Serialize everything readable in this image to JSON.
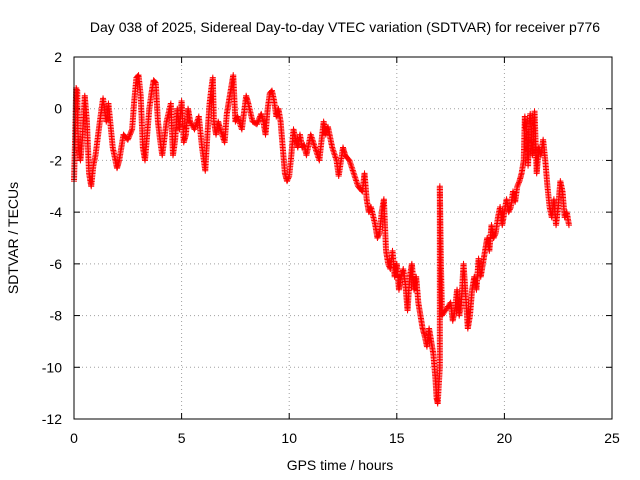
{
  "chart_data": {
    "type": "scatter",
    "title": "Day 038 of 2025, Sidereal Day-to-day VTEC variation (SDTVAR) for receiver p776",
    "xlabel": "GPS time / hours",
    "ylabel": "SDTVAR / TECUs",
    "xlim": [
      0,
      25
    ],
    "ylim": [
      -12,
      2
    ],
    "xticks": [
      0,
      5,
      10,
      15,
      20,
      25
    ],
    "yticks": [
      2,
      0,
      -2,
      -4,
      -6,
      -8,
      -10,
      -12
    ],
    "grid": true,
    "marker": "+",
    "color": "#ff0000",
    "series": [
      {
        "name": "SDTVAR",
        "trace": [
          [
            0.0,
            -2.8
          ],
          [
            0.05,
            -1.2
          ],
          [
            0.1,
            0.8
          ],
          [
            0.15,
            0.7
          ],
          [
            0.2,
            -1.5
          ],
          [
            0.3,
            -2.0
          ],
          [
            0.4,
            -1.0
          ],
          [
            0.5,
            0.5
          ],
          [
            0.6,
            -0.5
          ],
          [
            0.7,
            -2.5
          ],
          [
            0.8,
            -3.0
          ],
          [
            0.9,
            -2.2
          ],
          [
            1.0,
            -1.8
          ],
          [
            1.2,
            -0.5
          ],
          [
            1.35,
            0.4
          ],
          [
            1.5,
            -0.5
          ],
          [
            1.6,
            0.2
          ],
          [
            1.8,
            -1.5
          ],
          [
            2.0,
            -2.3
          ],
          [
            2.1,
            -2.0
          ],
          [
            2.3,
            -1.0
          ],
          [
            2.5,
            -1.2
          ],
          [
            2.7,
            -0.8
          ],
          [
            2.8,
            0.3
          ],
          [
            2.9,
            1.2
          ],
          [
            3.0,
            1.3
          ],
          [
            3.1,
            0.5
          ],
          [
            3.2,
            -1.5
          ],
          [
            3.3,
            -2.0
          ],
          [
            3.5,
            0.0
          ],
          [
            3.6,
            0.6
          ],
          [
            3.7,
            1.1
          ],
          [
            3.8,
            1.0
          ],
          [
            3.9,
            -0.5
          ],
          [
            4.0,
            -1.2
          ],
          [
            4.1,
            -1.8
          ],
          [
            4.3,
            -0.5
          ],
          [
            4.5,
            0.2
          ],
          [
            4.6,
            -1.8
          ],
          [
            4.7,
            -1.2
          ],
          [
            4.8,
            0.0
          ],
          [
            4.9,
            -0.8
          ],
          [
            5.0,
            0.3
          ],
          [
            5.1,
            -1.3
          ],
          [
            5.2,
            -1.0
          ],
          [
            5.3,
            0.0
          ],
          [
            5.4,
            -0.5
          ],
          [
            5.6,
            -0.8
          ],
          [
            5.8,
            -0.3
          ],
          [
            5.95,
            -1.5
          ],
          [
            6.1,
            -2.4
          ],
          [
            6.2,
            -1.0
          ],
          [
            6.3,
            0.2
          ],
          [
            6.4,
            0.9
          ],
          [
            6.45,
            1.2
          ],
          [
            6.5,
            -0.5
          ],
          [
            6.6,
            -1.0
          ],
          [
            6.7,
            -0.5
          ],
          [
            6.8,
            -0.8
          ],
          [
            7.0,
            -1.3
          ],
          [
            7.1,
            -0.2
          ],
          [
            7.2,
            0.3
          ],
          [
            7.3,
            0.8
          ],
          [
            7.4,
            1.3
          ],
          [
            7.5,
            -0.5
          ],
          [
            7.6,
            -0.3
          ],
          [
            7.8,
            -0.8
          ],
          [
            8.0,
            0.5
          ],
          [
            8.1,
            0.2
          ],
          [
            8.3,
            -0.5
          ],
          [
            8.5,
            -0.6
          ],
          [
            8.7,
            -0.2
          ],
          [
            8.8,
            -0.5
          ],
          [
            8.9,
            -1.0
          ],
          [
            9.0,
            0.0
          ],
          [
            9.1,
            0.6
          ],
          [
            9.2,
            0.7
          ],
          [
            9.3,
            0.3
          ],
          [
            9.4,
            -0.3
          ],
          [
            9.5,
            0.0
          ],
          [
            9.6,
            -0.5
          ],
          [
            9.7,
            -1.5
          ],
          [
            9.8,
            -2.5
          ],
          [
            9.9,
            -2.8
          ],
          [
            10.0,
            -2.6
          ],
          [
            10.1,
            -1.8
          ],
          [
            10.2,
            -0.8
          ],
          [
            10.3,
            -1.2
          ],
          [
            10.4,
            -1.5
          ],
          [
            10.5,
            -1.0
          ],
          [
            10.6,
            -1.5
          ],
          [
            10.7,
            -1.4
          ],
          [
            10.8,
            -1.8
          ],
          [
            11.0,
            -1.0
          ],
          [
            11.2,
            -1.5
          ],
          [
            11.4,
            -2.0
          ],
          [
            11.6,
            -0.5
          ],
          [
            11.7,
            -1.0
          ],
          [
            11.8,
            -0.7
          ],
          [
            12.0,
            -1.5
          ],
          [
            12.2,
            -2.0
          ],
          [
            12.3,
            -2.6
          ],
          [
            12.5,
            -1.5
          ],
          [
            12.6,
            -1.8
          ],
          [
            12.8,
            -2.0
          ],
          [
            13.0,
            -2.5
          ],
          [
            13.2,
            -3.0
          ],
          [
            13.4,
            -3.2
          ],
          [
            13.5,
            -2.5
          ],
          [
            13.6,
            -3.5
          ],
          [
            13.7,
            -4.0
          ],
          [
            13.8,
            -3.8
          ],
          [
            14.0,
            -4.5
          ],
          [
            14.1,
            -5.0
          ],
          [
            14.2,
            -4.8
          ],
          [
            14.3,
            -4.0
          ],
          [
            14.4,
            -3.5
          ],
          [
            14.5,
            -5.5
          ],
          [
            14.6,
            -6.0
          ],
          [
            14.7,
            -6.2
          ],
          [
            14.8,
            -5.5
          ],
          [
            14.9,
            -6.5
          ],
          [
            15.0,
            -6.0
          ],
          [
            15.1,
            -7.0
          ],
          [
            15.2,
            -6.5
          ],
          [
            15.3,
            -6.2
          ],
          [
            15.4,
            -6.8
          ],
          [
            15.5,
            -7.8
          ],
          [
            15.6,
            -6.5
          ],
          [
            15.7,
            -6.0
          ],
          [
            15.8,
            -7.0
          ],
          [
            15.9,
            -6.5
          ],
          [
            16.0,
            -7.5
          ],
          [
            16.1,
            -8.0
          ],
          [
            16.2,
            -8.5
          ],
          [
            16.3,
            -8.8
          ],
          [
            16.4,
            -9.2
          ],
          [
            16.5,
            -8.5
          ],
          [
            16.6,
            -9.0
          ],
          [
            16.7,
            -9.5
          ],
          [
            16.8,
            -10.5
          ],
          [
            16.85,
            -11.2
          ],
          [
            16.9,
            -11.4
          ],
          [
            17.0,
            -10.0
          ],
          [
            17.0,
            -3.0
          ],
          [
            17.05,
            -6.0
          ],
          [
            17.1,
            -8.0
          ],
          [
            17.5,
            -7.5
          ],
          [
            17.6,
            -8.2
          ],
          [
            17.7,
            -7.8
          ],
          [
            17.8,
            -7.0
          ],
          [
            17.9,
            -8.0
          ],
          [
            18.0,
            -7.5
          ],
          [
            18.1,
            -6.0
          ],
          [
            18.2,
            -7.2
          ],
          [
            18.3,
            -8.5
          ],
          [
            18.4,
            -8.0
          ],
          [
            18.5,
            -7.0
          ],
          [
            18.6,
            -6.5
          ],
          [
            18.7,
            -7.0
          ],
          [
            18.8,
            -5.8
          ],
          [
            18.9,
            -6.5
          ],
          [
            19.0,
            -6.0
          ],
          [
            19.1,
            -5.5
          ],
          [
            19.2,
            -5.0
          ],
          [
            19.3,
            -5.5
          ],
          [
            19.4,
            -4.5
          ],
          [
            19.5,
            -5.0
          ],
          [
            19.6,
            -4.8
          ],
          [
            19.7,
            -4.2
          ],
          [
            19.8,
            -3.8
          ],
          [
            19.9,
            -4.5
          ],
          [
            20.0,
            -4.0
          ],
          [
            20.1,
            -3.5
          ],
          [
            20.2,
            -4.0
          ],
          [
            20.3,
            -3.8
          ],
          [
            20.4,
            -3.2
          ],
          [
            20.5,
            -3.6
          ],
          [
            20.6,
            -3.0
          ],
          [
            20.7,
            -2.8
          ],
          [
            20.8,
            -2.5
          ],
          [
            20.9,
            -2.0
          ],
          [
            20.95,
            -0.3
          ],
          [
            21.0,
            -0.8
          ],
          [
            21.05,
            -1.0
          ],
          [
            21.1,
            -2.2
          ],
          [
            21.15,
            -0.5
          ],
          [
            21.2,
            -0.2
          ],
          [
            21.3,
            -1.8
          ],
          [
            21.4,
            -0.1
          ],
          [
            21.5,
            -2.5
          ],
          [
            21.6,
            -1.5
          ],
          [
            21.7,
            -1.8
          ],
          [
            21.8,
            -1.2
          ],
          [
            21.9,
            -2.0
          ],
          [
            22.0,
            -3.0
          ],
          [
            22.1,
            -3.8
          ],
          [
            22.2,
            -4.2
          ],
          [
            22.3,
            -3.5
          ],
          [
            22.4,
            -4.5
          ],
          [
            22.5,
            -3.8
          ],
          [
            22.6,
            -2.8
          ],
          [
            22.7,
            -3.2
          ],
          [
            22.8,
            -4.2
          ],
          [
            22.9,
            -4.0
          ],
          [
            23.0,
            -4.5
          ]
        ]
      }
    ]
  }
}
